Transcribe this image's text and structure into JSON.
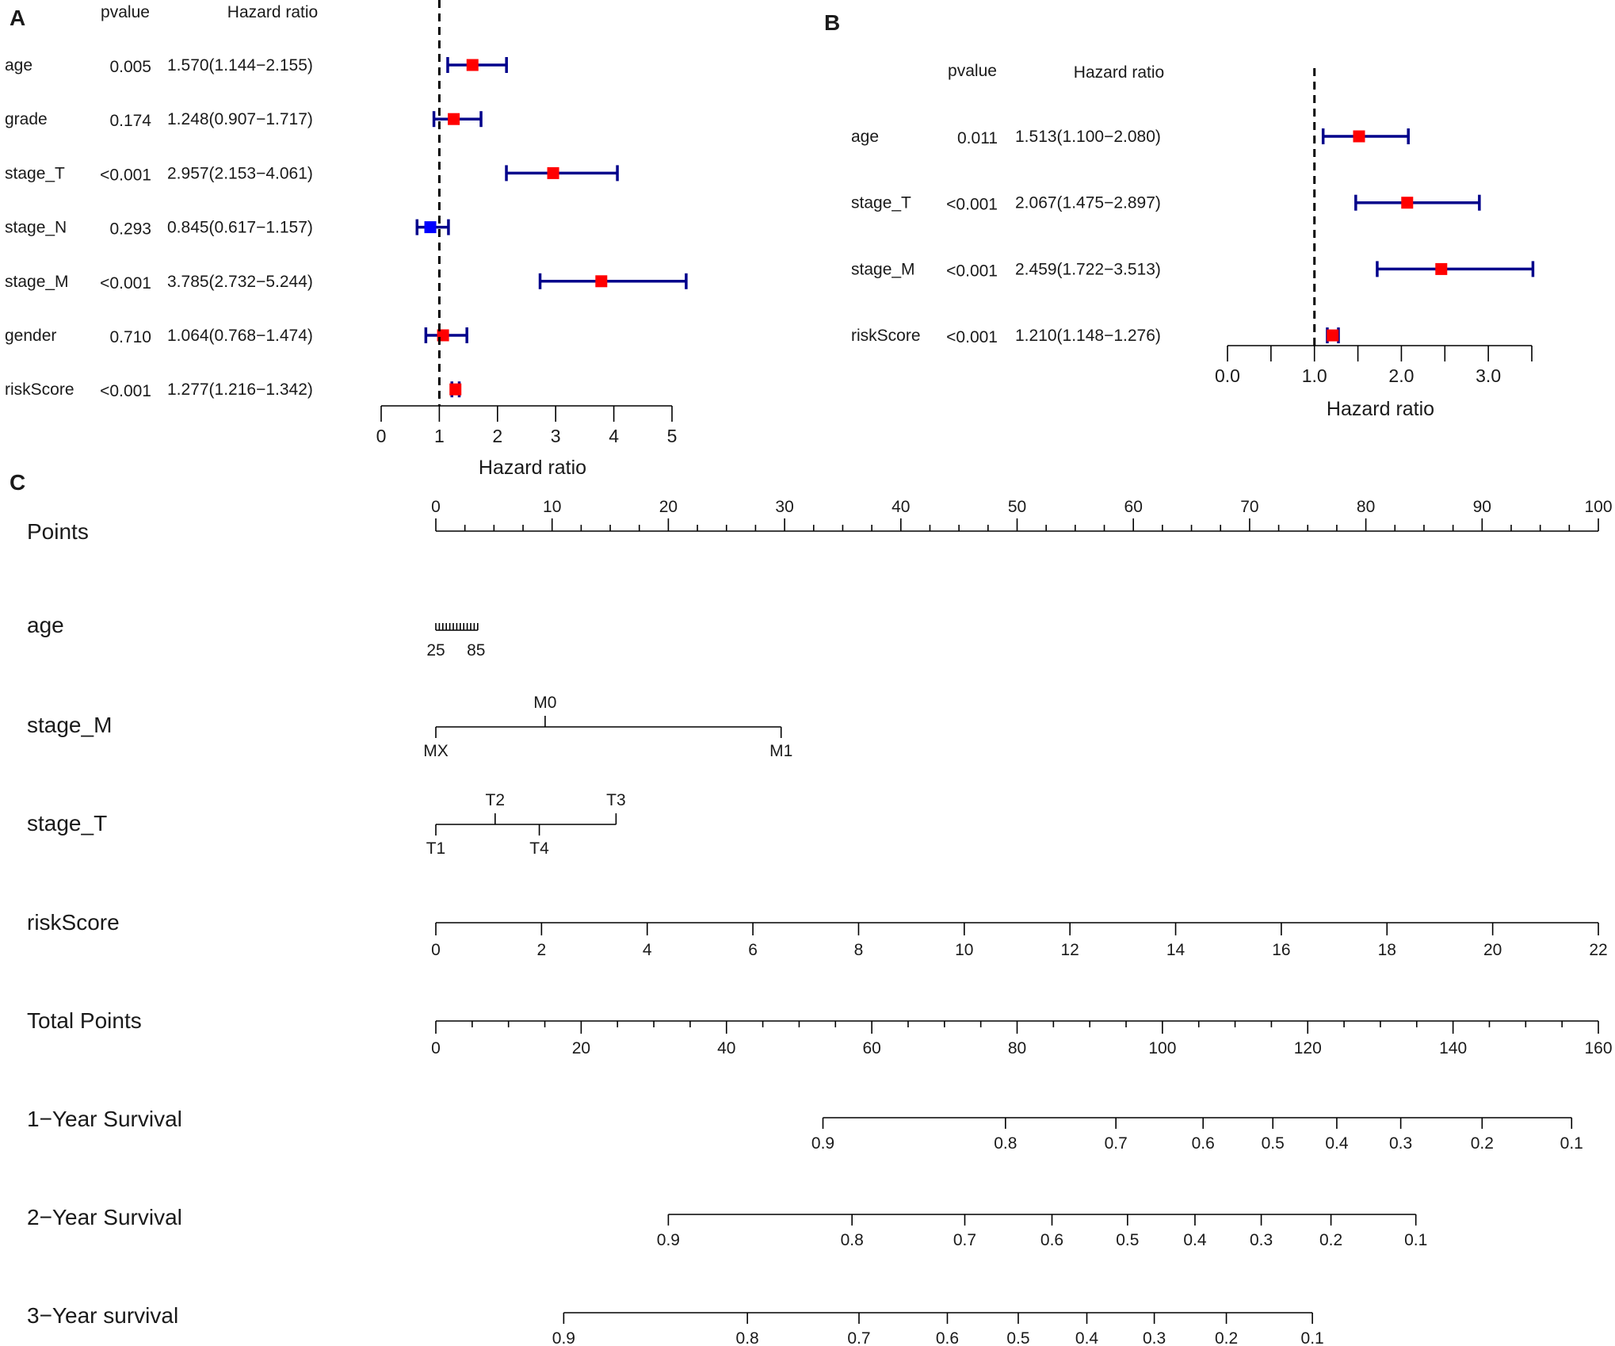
{
  "chart_data": [
    {
      "type": "forest",
      "panel": "A",
      "header": {
        "pvalue": "pvalue",
        "hr": "Hazard ratio"
      },
      "xlabel": "Hazard ratio",
      "xlim": [
        0,
        5
      ],
      "ticks": [
        "0",
        "1",
        "2",
        "3",
        "4",
        "5"
      ],
      "ref_line": 1,
      "colors": {
        "ci": "#00008b",
        "risk": "#ff0000",
        "protective": "#0000ff"
      },
      "rows": [
        {
          "name": "age",
          "pvalue": "0.005",
          "hr_text": "1.570(1.144−2.155)",
          "hr": 1.57,
          "low": 1.144,
          "high": 2.155
        },
        {
          "name": "grade",
          "pvalue": "0.174",
          "hr_text": "1.248(0.907−1.717)",
          "hr": 1.248,
          "low": 0.907,
          "high": 1.717
        },
        {
          "name": "stage_T",
          "pvalue": "<0.001",
          "hr_text": "2.957(2.153−4.061)",
          "hr": 2.957,
          "low": 2.153,
          "high": 4.061
        },
        {
          "name": "stage_N",
          "pvalue": "0.293",
          "hr_text": "0.845(0.617−1.157)",
          "hr": 0.845,
          "low": 0.617,
          "high": 1.157
        },
        {
          "name": "stage_M",
          "pvalue": "<0.001",
          "hr_text": "3.785(2.732−5.244)",
          "hr": 3.785,
          "low": 2.732,
          "high": 5.244
        },
        {
          "name": "gender",
          "pvalue": "0.710",
          "hr_text": "1.064(0.768−1.474)",
          "hr": 1.064,
          "low": 0.768,
          "high": 1.474
        },
        {
          "name": "riskScore",
          "pvalue": "<0.001",
          "hr_text": "1.277(1.216−1.342)",
          "hr": 1.277,
          "low": 1.216,
          "high": 1.342
        }
      ]
    },
    {
      "type": "forest",
      "panel": "B",
      "header": {
        "pvalue": "pvalue",
        "hr": "Hazard ratio"
      },
      "xlabel": "Hazard ratio",
      "xlim": [
        0,
        3.5
      ],
      "ticks": [
        "0.0",
        "1.0",
        "2.0",
        "3.0"
      ],
      "minor_ticks": [
        0.5,
        1.5,
        2.5,
        3.5
      ],
      "ref_line": 1,
      "colors": {
        "ci": "#00008b",
        "risk": "#ff0000",
        "protective": "#0000ff"
      },
      "rows": [
        {
          "name": "age",
          "pvalue": "0.011",
          "hr_text": "1.513(1.100−2.080)",
          "hr": 1.513,
          "low": 1.1,
          "high": 2.08
        },
        {
          "name": "stage_T",
          "pvalue": "<0.001",
          "hr_text": "2.067(1.475−2.897)",
          "hr": 2.067,
          "low": 1.475,
          "high": 2.897
        },
        {
          "name": "stage_M",
          "pvalue": "<0.001",
          "hr_text": "2.459(1.722−3.513)",
          "hr": 2.459,
          "low": 1.722,
          "high": 3.513
        },
        {
          "name": "riskScore",
          "pvalue": "<0.001",
          "hr_text": "1.210(1.148−1.276)",
          "hr": 1.21,
          "low": 1.148,
          "high": 1.276
        }
      ]
    },
    {
      "type": "nomogram",
      "panel": "C",
      "rows": [
        {
          "name": "Points",
          "kind": "scale",
          "range": [
            0,
            100
          ],
          "labels": [
            0,
            10,
            20,
            30,
            40,
            50,
            60,
            70,
            80,
            90,
            100
          ],
          "minor_step": 2.5,
          "label_pos": "above"
        },
        {
          "name": "age",
          "kind": "compressed",
          "labels": [
            "25",
            "85"
          ],
          "points_range": [
            0,
            3.6
          ]
        },
        {
          "name": "stage_M",
          "kind": "categorical",
          "points_range": [
            0,
            29.7
          ],
          "categories": [
            {
              "label": "MX",
              "points": 0,
              "pos": "below"
            },
            {
              "label": "M0",
              "points": 9.4,
              "pos": "above"
            },
            {
              "label": "M1",
              "points": 29.7,
              "pos": "below"
            }
          ]
        },
        {
          "name": "stage_T",
          "kind": "categorical",
          "points_range": [
            0,
            15.5
          ],
          "categories": [
            {
              "label": "T1",
              "points": 0,
              "pos": "below"
            },
            {
              "label": "T2",
              "points": 5.1,
              "pos": "above"
            },
            {
              "label": "T4",
              "points": 8.9,
              "pos": "below"
            },
            {
              "label": "T3",
              "points": 15.5,
              "pos": "above"
            }
          ]
        },
        {
          "name": "riskScore",
          "kind": "scale",
          "range": [
            0,
            22
          ],
          "labels": [
            0,
            2,
            4,
            6,
            8,
            10,
            12,
            14,
            16,
            18,
            20,
            22
          ],
          "points_range": [
            0,
            100
          ],
          "label_pos": "below"
        },
        {
          "name": "Total Points",
          "kind": "scale",
          "range": [
            0,
            160
          ],
          "labels": [
            0,
            20,
            40,
            60,
            80,
            100,
            120,
            140,
            160
          ],
          "minor_step": 5,
          "points_range": [
            0,
            100
          ],
          "label_pos": "below"
        },
        {
          "name": "1−Year Survival",
          "kind": "probability",
          "labels": [
            "0.9",
            "0.8",
            "0.7",
            "0.6",
            "0.5",
            "0.4",
            "0.3",
            "0.2",
            "0.1"
          ],
          "total_points": [
            33.3,
            49.0,
            58.5,
            66.0,
            72.0,
            77.5,
            83.0,
            90.0,
            97.7
          ]
        },
        {
          "name": "2−Year Survival",
          "kind": "probability",
          "labels": [
            "0.9",
            "0.8",
            "0.7",
            "0.6",
            "0.5",
            "0.4",
            "0.3",
            "0.2",
            "0.1"
          ],
          "total_points": [
            20.0,
            35.8,
            45.5,
            53.0,
            59.5,
            65.3,
            71.0,
            77.0,
            84.3
          ]
        },
        {
          "name": "3−Year survival",
          "kind": "probability",
          "labels": [
            "0.9",
            "0.8",
            "0.7",
            "0.6",
            "0.5",
            "0.4",
            "0.3",
            "0.2",
            "0.1"
          ],
          "total_points": [
            11.0,
            26.8,
            36.4,
            44.0,
            50.1,
            56.0,
            61.8,
            68.0,
            75.4
          ]
        }
      ]
    }
  ]
}
